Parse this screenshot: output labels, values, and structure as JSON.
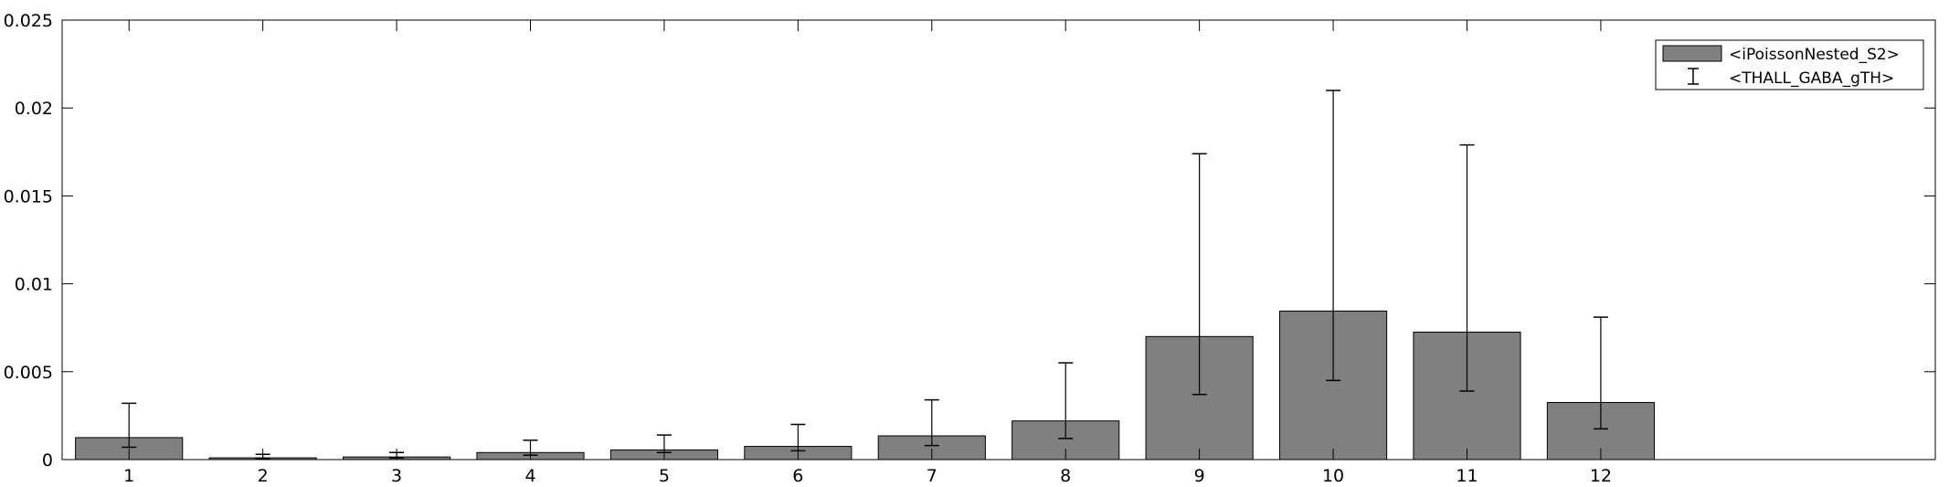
{
  "chart_data": {
    "type": "bar",
    "categories": [
      "1",
      "2",
      "3",
      "4",
      "5",
      "6",
      "7",
      "8",
      "9",
      "10",
      "11",
      "12"
    ],
    "series": [
      {
        "name": "<iPoissonNested_S2>",
        "values": [
          0.00125,
          0.0001,
          0.00015,
          0.0004,
          0.00055,
          0.00075,
          0.00135,
          0.0022,
          0.007,
          0.00845,
          0.00725,
          0.00325
        ]
      }
    ],
    "errorbars": {
      "name": "<THALL_GABA_gTH>",
      "lower": [
        0.0007,
        5e-05,
        0.0001,
        0.00025,
        0.0004,
        0.0005,
        0.0008,
        0.0012,
        0.0037,
        0.0045,
        0.0039,
        0.00175
      ],
      "upper": [
        0.0032,
        0.0003,
        0.0004,
        0.0011,
        0.0014,
        0.002,
        0.0034,
        0.0055,
        0.0174,
        0.021,
        0.0179,
        0.0081
      ]
    },
    "yticks": [
      "0",
      "0.005",
      "0.01",
      "0.015",
      "0.02",
      "0.025"
    ],
    "ytick_values": [
      0,
      0.005,
      0.01,
      0.015,
      0.02,
      0.025
    ],
    "ylim": [
      0,
      0.025
    ],
    "xlim": [
      0.5,
      14.5
    ],
    "grid": false,
    "legend_position": "top-right",
    "colors": {
      "bar": "#808080",
      "edge": "#000000",
      "axis": "#000000"
    }
  }
}
